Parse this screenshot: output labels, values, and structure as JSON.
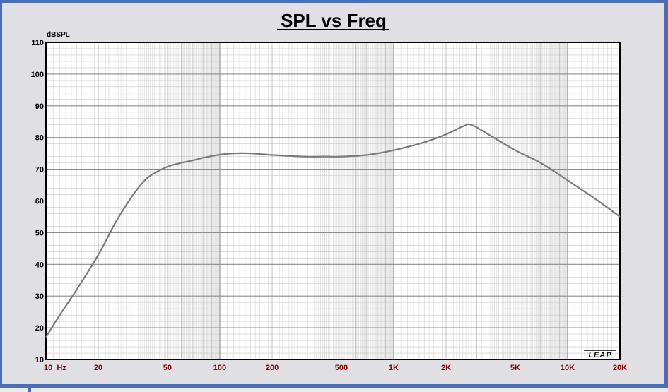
{
  "chart_data": {
    "type": "line",
    "title": "SPL vs Freq",
    "ylabel": "dBSPL",
    "xlabel": "",
    "x_scale": "log",
    "xlim": [
      10,
      20000
    ],
    "ylim": [
      10,
      110
    ],
    "grid": true,
    "y_ticks": [
      10,
      20,
      30,
      40,
      50,
      60,
      70,
      80,
      90,
      100,
      110
    ],
    "y_tick_labels": [
      "10",
      "20",
      "30",
      "40",
      "50",
      "60",
      "70",
      "80",
      "90",
      "100",
      "110"
    ],
    "x_ticks": [
      10,
      20,
      50,
      100,
      200,
      500,
      1000,
      2000,
      5000,
      10000,
      20000
    ],
    "x_tick_labels": [
      "10  Hz",
      "20",
      "50",
      "100",
      "200",
      "500",
      "1K",
      "2K",
      "5K",
      "10K",
      "20K"
    ],
    "line_color": "#7a7a7a",
    "series": [
      {
        "x": [
          10,
          12,
          15,
          20,
          25,
          30,
          35,
          40,
          50,
          60,
          70,
          80,
          100,
          120,
          150,
          200,
          300,
          400,
          500,
          700,
          1000,
          1500,
          2000,
          2500,
          2800,
          3500,
          5000,
          7000,
          10000,
          15000,
          20000
        ],
        "y": [
          17,
          24,
          32,
          43,
          53,
          60,
          65,
          68,
          70.8,
          72,
          72.8,
          73.6,
          74.6,
          75,
          75,
          74.5,
          74,
          74,
          74,
          74.5,
          76,
          78.5,
          81,
          83.5,
          84,
          81,
          76,
          72,
          66.5,
          60,
          55
        ]
      }
    ],
    "logo": "LEAP"
  }
}
